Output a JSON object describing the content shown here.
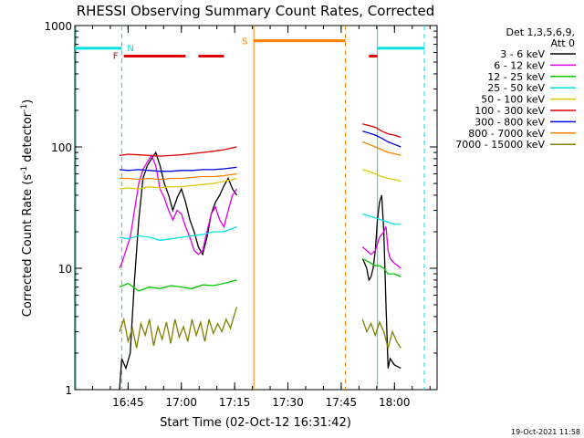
{
  "chart_data": {
    "type": "line",
    "title": "RHESSI Observing Summary Count Rates, Corrected",
    "xlabel": "Start Time (02-Oct-12 16:31:42)",
    "ylabel_main": "Corrected Count Rate (s",
    "ylabel_sup1": "-1",
    "ylabel_mid": " detector",
    "ylabel_sup2": "-1",
    "ylabel_close": ")",
    "yscale": "log",
    "ylim": [
      1,
      1000
    ],
    "xlim_minutes": [
      16.5,
      18.2
    ],
    "x_ticks": [
      {
        "t": 16.75,
        "label": "16:45"
      },
      {
        "t": 17.0,
        "label": "17:00"
      },
      {
        "t": 17.25,
        "label": "17:15"
      },
      {
        "t": 17.5,
        "label": "17:30"
      },
      {
        "t": 17.75,
        "label": "17:45"
      },
      {
        "t": 18.0,
        "label": "18:00"
      }
    ],
    "y_ticks": [
      {
        "v": 1,
        "label": "1"
      },
      {
        "v": 10,
        "label": "10"
      },
      {
        "v": 100,
        "label": "100"
      },
      {
        "v": 1000,
        "label": "1000"
      }
    ],
    "legend_title_1": "Det 1,3,5,6,9,",
    "legend_title_2": "Att 0",
    "legend_position": "top-right",
    "series": [
      {
        "name": "3 - 6 keV",
        "color": "#000000",
        "segments": [
          [
            [
              16.71,
              1.0
            ],
            [
              16.72,
              1.8
            ],
            [
              16.74,
              1.5
            ],
            [
              16.76,
              2.0
            ],
            [
              16.78,
              8
            ],
            [
              16.8,
              25
            ],
            [
              16.82,
              55
            ],
            [
              16.84,
              70
            ],
            [
              16.86,
              80
            ],
            [
              16.88,
              90
            ],
            [
              16.9,
              70
            ],
            [
              16.92,
              50
            ],
            [
              16.94,
              40
            ],
            [
              16.96,
              30
            ],
            [
              16.98,
              38
            ],
            [
              17.0,
              45
            ],
            [
              17.02,
              35
            ],
            [
              17.04,
              25
            ],
            [
              17.06,
              20
            ],
            [
              17.08,
              15
            ],
            [
              17.1,
              13
            ],
            [
              17.12,
              18
            ],
            [
              17.14,
              28
            ],
            [
              17.16,
              35
            ],
            [
              17.18,
              40
            ],
            [
              17.2,
              48
            ],
            [
              17.22,
              55
            ],
            [
              17.24,
              45
            ],
            [
              17.26,
              40
            ]
          ],
          [
            [
              17.85,
              12
            ],
            [
              17.86,
              11
            ],
            [
              17.87,
              10
            ],
            [
              17.88,
              8
            ],
            [
              17.89,
              8.5
            ],
            [
              17.9,
              10
            ],
            [
              17.91,
              14
            ],
            [
              17.92,
              25
            ],
            [
              17.93,
              35
            ],
            [
              17.94,
              40
            ],
            [
              17.95,
              20
            ],
            [
              17.96,
              5
            ],
            [
              17.97,
              1.5
            ],
            [
              17.98,
              1.8
            ],
            [
              18.0,
              1.6
            ],
            [
              18.03,
              1.5
            ]
          ]
        ]
      },
      {
        "name": "6 - 12 keV",
        "color": "#e000e0",
        "segments": [
          [
            [
              16.71,
              10
            ],
            [
              16.72,
              11
            ],
            [
              16.74,
              14
            ],
            [
              16.76,
              18
            ],
            [
              16.78,
              30
            ],
            [
              16.8,
              50
            ],
            [
              16.82,
              65
            ],
            [
              16.84,
              75
            ],
            [
              16.86,
              85
            ],
            [
              16.88,
              70
            ],
            [
              16.9,
              45
            ],
            [
              16.92,
              38
            ],
            [
              16.94,
              30
            ],
            [
              16.96,
              25
            ],
            [
              16.98,
              30
            ],
            [
              17.0,
              28
            ],
            [
              17.02,
              22
            ],
            [
              17.04,
              18
            ],
            [
              17.06,
              14
            ],
            [
              17.08,
              13
            ],
            [
              17.1,
              14
            ],
            [
              17.12,
              20
            ],
            [
              17.14,
              28
            ],
            [
              17.16,
              32
            ],
            [
              17.18,
              25
            ],
            [
              17.2,
              22
            ],
            [
              17.22,
              30
            ],
            [
              17.24,
              40
            ],
            [
              17.26,
              45
            ]
          ],
          [
            [
              17.85,
              15
            ],
            [
              17.87,
              14
            ],
            [
              17.89,
              13
            ],
            [
              17.91,
              14
            ],
            [
              17.93,
              18
            ],
            [
              17.95,
              20
            ],
            [
              17.96,
              22
            ],
            [
              17.97,
              14
            ],
            [
              17.98,
              12
            ],
            [
              18.0,
              11
            ],
            [
              18.03,
              10
            ]
          ]
        ]
      },
      {
        "name": "12 - 25 keV",
        "color": "#00c800",
        "segments": [
          [
            [
              16.71,
              7
            ],
            [
              16.75,
              7.5
            ],
            [
              16.8,
              6.5
            ],
            [
              16.85,
              7
            ],
            [
              16.9,
              6.8
            ],
            [
              16.95,
              7.2
            ],
            [
              17.0,
              7
            ],
            [
              17.05,
              6.8
            ],
            [
              17.1,
              7.3
            ],
            [
              17.15,
              7.2
            ],
            [
              17.2,
              7.5
            ],
            [
              17.26,
              8
            ]
          ],
          [
            [
              17.85,
              12
            ],
            [
              17.87,
              11.5
            ],
            [
              17.89,
              11
            ],
            [
              17.91,
              10.5
            ],
            [
              17.93,
              10.5
            ],
            [
              17.95,
              10
            ],
            [
              17.97,
              9
            ],
            [
              18.0,
              9
            ],
            [
              18.03,
              8.5
            ]
          ]
        ]
      },
      {
        "name": "25 - 50 keV",
        "color": "#00e0e0",
        "segments": [
          [
            [
              16.71,
              18
            ],
            [
              16.75,
              17.5
            ],
            [
              16.8,
              18.5
            ],
            [
              16.85,
              18
            ],
            [
              16.9,
              17
            ],
            [
              16.95,
              17.5
            ],
            [
              17.0,
              18
            ],
            [
              17.05,
              18.5
            ],
            [
              17.1,
              19
            ],
            [
              17.15,
              20
            ],
            [
              17.2,
              20
            ],
            [
              17.26,
              22
            ]
          ],
          [
            [
              17.85,
              28
            ],
            [
              17.88,
              27
            ],
            [
              17.91,
              26
            ],
            [
              17.94,
              25
            ],
            [
              17.97,
              24
            ],
            [
              18.0,
              23
            ],
            [
              18.03,
              23
            ]
          ]
        ]
      },
      {
        "name": "50 - 100 keV",
        "color": "#e0c800",
        "segments": [
          [
            [
              16.71,
              45
            ],
            [
              16.75,
              46
            ],
            [
              16.8,
              45
            ],
            [
              16.85,
              47
            ],
            [
              16.9,
              46
            ],
            [
              16.95,
              47
            ],
            [
              17.0,
              47
            ],
            [
              17.05,
              48
            ],
            [
              17.1,
              49
            ],
            [
              17.15,
              50
            ],
            [
              17.2,
              52
            ],
            [
              17.26,
              55
            ]
          ],
          [
            [
              17.85,
              65
            ],
            [
              17.88,
              63
            ],
            [
              17.91,
              60
            ],
            [
              17.94,
              57
            ],
            [
              17.97,
              55
            ],
            [
              18.0,
              54
            ],
            [
              18.03,
              52
            ]
          ]
        ]
      },
      {
        "name": "100 - 300 keV",
        "color": "#e00000",
        "segments": [
          [
            [
              16.71,
              85
            ],
            [
              16.75,
              87
            ],
            [
              16.8,
              86
            ],
            [
              16.85,
              85
            ],
            [
              16.9,
              84
            ],
            [
              16.95,
              85
            ],
            [
              17.0,
              86
            ],
            [
              17.05,
              88
            ],
            [
              17.1,
              90
            ],
            [
              17.15,
              92
            ],
            [
              17.2,
              95
            ],
            [
              17.26,
              100
            ]
          ],
          [
            [
              17.85,
              155
            ],
            [
              17.88,
              150
            ],
            [
              17.91,
              145
            ],
            [
              17.94,
              135
            ],
            [
              17.97,
              128
            ],
            [
              18.0,
              125
            ],
            [
              18.03,
              120
            ]
          ]
        ]
      },
      {
        "name": "300 - 800 keV",
        "color": "#0000e0",
        "segments": [
          [
            [
              16.71,
              65
            ],
            [
              16.75,
              64
            ],
            [
              16.8,
              65
            ],
            [
              16.85,
              64
            ],
            [
              16.9,
              63
            ],
            [
              16.95,
              63
            ],
            [
              17.0,
              64
            ],
            [
              17.05,
              64
            ],
            [
              17.1,
              65
            ],
            [
              17.15,
              65
            ],
            [
              17.2,
              66
            ],
            [
              17.26,
              68
            ]
          ],
          [
            [
              17.85,
              135
            ],
            [
              17.88,
              130
            ],
            [
              17.91,
              125
            ],
            [
              17.94,
              118
            ],
            [
              17.97,
              110
            ],
            [
              18.0,
              105
            ],
            [
              18.03,
              100
            ]
          ]
        ]
      },
      {
        "name": "800 - 7000 keV",
        "color": "#ff8000",
        "segments": [
          [
            [
              16.71,
              55
            ],
            [
              16.75,
              55
            ],
            [
              16.8,
              54
            ],
            [
              16.85,
              55
            ],
            [
              16.9,
              54
            ],
            [
              16.95,
              55
            ],
            [
              17.0,
              55
            ],
            [
              17.05,
              56
            ],
            [
              17.1,
              57
            ],
            [
              17.15,
              57
            ],
            [
              17.2,
              58
            ],
            [
              17.26,
              60
            ]
          ],
          [
            [
              17.85,
              110
            ],
            [
              17.88,
              105
            ],
            [
              17.91,
              100
            ],
            [
              17.94,
              95
            ],
            [
              17.97,
              90
            ],
            [
              18.0,
              88
            ],
            [
              18.03,
              85
            ]
          ]
        ]
      },
      {
        "name": "7000 - 15000 keV",
        "color": "#808000",
        "segments": [
          [
            [
              16.71,
              3
            ],
            [
              16.73,
              3.8
            ],
            [
              16.75,
              2.5
            ],
            [
              16.77,
              3.2
            ],
            [
              16.79,
              2.2
            ],
            [
              16.81,
              3.5
            ],
            [
              16.83,
              2.8
            ],
            [
              16.85,
              3.8
            ],
            [
              16.87,
              2.3
            ],
            [
              16.89,
              3.3
            ],
            [
              16.91,
              2.6
            ],
            [
              16.93,
              3.6
            ],
            [
              16.95,
              2.4
            ],
            [
              16.97,
              3.8
            ],
            [
              16.99,
              2.7
            ],
            [
              17.01,
              3.3
            ],
            [
              17.03,
              2.5
            ],
            [
              17.05,
              3.8
            ],
            [
              17.07,
              2.8
            ],
            [
              17.09,
              3.6
            ],
            [
              17.11,
              2.5
            ],
            [
              17.13,
              3.8
            ],
            [
              17.15,
              2.9
            ],
            [
              17.17,
              3.5
            ],
            [
              17.19,
              3.0
            ],
            [
              17.21,
              3.8
            ],
            [
              17.23,
              3.2
            ],
            [
              17.25,
              4.2
            ],
            [
              17.26,
              4.8
            ]
          ],
          [
            [
              17.85,
              3.8
            ],
            [
              17.87,
              3.0
            ],
            [
              17.89,
              3.5
            ],
            [
              17.91,
              2.8
            ],
            [
              17.93,
              3.6
            ],
            [
              17.95,
              3.0
            ],
            [
              17.97,
              2.2
            ],
            [
              17.99,
              3.0
            ],
            [
              18.01,
              2.5
            ],
            [
              18.03,
              2.2
            ]
          ]
        ]
      }
    ],
    "markers": {
      "saa_cyan_lines": [
        {
          "x0": 16.5,
          "x1": 16.72,
          "v": 650
        },
        {
          "x0": 17.92,
          "x1": 18.14,
          "v": 650
        }
      ],
      "cyan_vlines_solid": [
        16.505,
        17.92
      ],
      "cyan_vlines_dashed": [
        16.72,
        18.14
      ],
      "orange_vlines_solid": [
        17.34
      ],
      "orange_vlines_dashed": [
        17.77
      ],
      "orange_hline": {
        "x0": 17.34,
        "x1": 17.77,
        "v": 750
      },
      "red_flare_segments": [
        {
          "x0": 16.73,
          "x1": 17.02,
          "v": 560
        },
        {
          "x0": 17.08,
          "x1": 17.2,
          "v": 560
        },
        {
          "x0": 17.88,
          "x1": 17.92,
          "v": 560
        }
      ],
      "label_N": "N",
      "label_S": "S",
      "label_F": "F"
    },
    "timestamp": "19-Oct-2021 11:58"
  }
}
